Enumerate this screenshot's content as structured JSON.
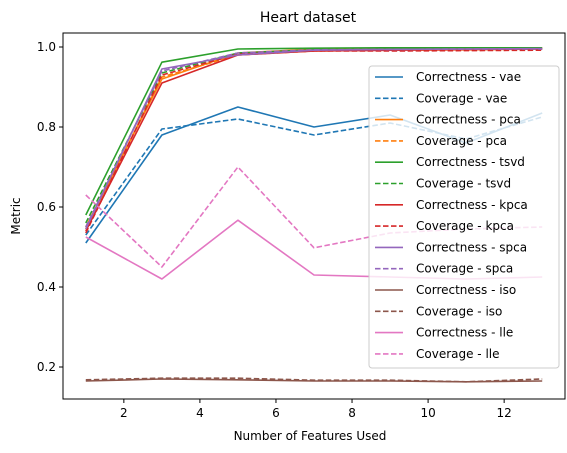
{
  "chart_data": {
    "type": "line",
    "title": "Heart dataset",
    "xlabel": "Number of Features Used",
    "ylabel": "Metric",
    "xlim": [
      0.4,
      13.6
    ],
    "ylim": [
      0.12,
      1.035
    ],
    "xticks": [
      2,
      4,
      6,
      8,
      10,
      12
    ],
    "yticks": [
      0.2,
      0.4,
      0.6,
      0.8,
      1.0
    ],
    "ytick_labels": [
      "0.2",
      "0.4",
      "0.6",
      "0.8",
      "1.0"
    ],
    "grid": false,
    "legend_position": "right",
    "x": [
      1,
      3,
      5,
      7,
      9,
      11,
      13
    ],
    "series": [
      {
        "name": "Correctness - vae",
        "color": "#1f77b4",
        "dash": "solid",
        "values": [
          0.51,
          0.78,
          0.85,
          0.8,
          0.83,
          0.76,
          0.835
        ]
      },
      {
        "name": "Coverage - vae",
        "color": "#1f77b4",
        "dash": "dashed",
        "values": [
          0.53,
          0.795,
          0.82,
          0.78,
          0.81,
          0.77,
          0.825
        ]
      },
      {
        "name": "Correctness - pca",
        "color": "#ff7f0e",
        "dash": "solid",
        "values": [
          0.55,
          0.92,
          0.985,
          0.995,
          0.997,
          0.998,
          0.998
        ]
      },
      {
        "name": "Coverage - pca",
        "color": "#ff7f0e",
        "dash": "dashed",
        "values": [
          0.545,
          0.925,
          0.98,
          0.99,
          0.992,
          0.993,
          0.995
        ]
      },
      {
        "name": "Correctness - tsvd",
        "color": "#2ca02c",
        "dash": "solid",
        "values": [
          0.58,
          0.962,
          0.995,
          0.997,
          0.998,
          0.998,
          0.998
        ]
      },
      {
        "name": "Coverage - tsvd",
        "color": "#2ca02c",
        "dash": "dashed",
        "values": [
          0.56,
          0.935,
          0.985,
          0.993,
          0.994,
          0.995,
          0.996
        ]
      },
      {
        "name": "Correctness - kpca",
        "color": "#d62728",
        "dash": "solid",
        "values": [
          0.54,
          0.91,
          0.98,
          0.99,
          0.992,
          0.994,
          0.995
        ]
      },
      {
        "name": "Coverage - kpca",
        "color": "#d62728",
        "dash": "dashed",
        "values": [
          0.535,
          0.93,
          0.982,
          0.99,
          0.99,
          0.991,
          0.992
        ]
      },
      {
        "name": "Correctness - spca",
        "color": "#9467bd",
        "dash": "solid",
        "values": [
          0.545,
          0.945,
          0.98,
          0.992,
          0.994,
          0.995,
          0.996
        ]
      },
      {
        "name": "Coverage - spca",
        "color": "#9467bd",
        "dash": "dashed",
        "values": [
          0.55,
          0.94,
          0.985,
          0.993,
          0.994,
          0.995,
          0.995
        ]
      },
      {
        "name": "Correctness - iso",
        "color": "#8c564b",
        "dash": "solid",
        "values": [
          0.165,
          0.17,
          0.168,
          0.165,
          0.165,
          0.163,
          0.165
        ]
      },
      {
        "name": "Coverage - iso",
        "color": "#8c564b",
        "dash": "dashed",
        "values": [
          0.168,
          0.172,
          0.172,
          0.167,
          0.167,
          0.163,
          0.17
        ]
      },
      {
        "name": "Correctness - lle",
        "color": "#e377c2",
        "dash": "solid",
        "values": [
          0.525,
          0.42,
          0.567,
          0.43,
          0.425,
          0.42,
          0.425
        ]
      },
      {
        "name": "Coverage - lle",
        "color": "#e377c2",
        "dash": "dashed",
        "values": [
          0.63,
          0.45,
          0.7,
          0.498,
          0.535,
          0.545,
          0.55
        ]
      }
    ]
  }
}
